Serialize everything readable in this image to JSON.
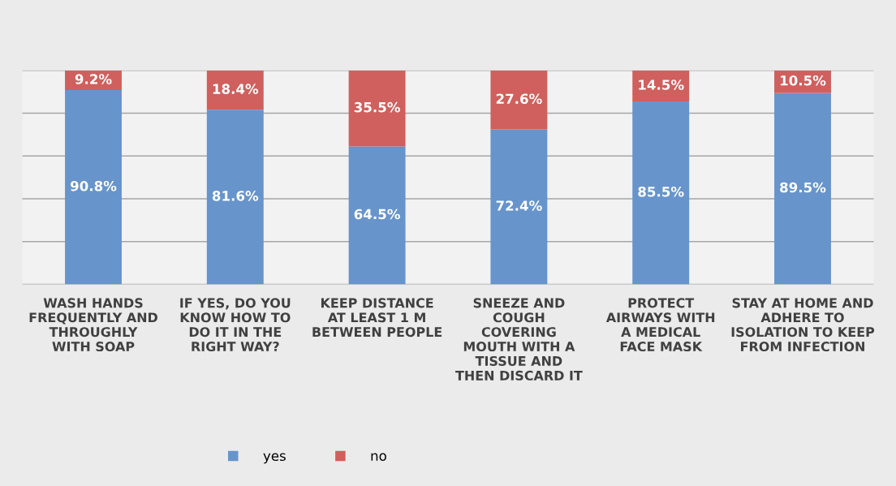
{
  "chart_data": {
    "type": "bar",
    "stacked": true,
    "categories": [
      "WASH HANDS\nFREQUENTLY AND\nTHROUGHLY\nWITH SOAP",
      "IF YES, DO YOU\nKNOW HOW TO\nDO IT IN THE\nRIGHT WAY?",
      "KEEP DISTANCE\nAT LEAST 1 M\nBETWEEN PEOPLE",
      "SNEEZE AND\nCOUGH\nCOVERING\nMOUTH WITH A\nTISSUE AND\nTHEN DISCARD IT",
      "PROTECT\nAIRWAYS WITH\nA MEDICAL\nFACE MASK",
      "STAY AT HOME AND\nADHERE TO\nISOLATION TO KEEP\nFROM INFECTION"
    ],
    "series": [
      {
        "name": "yes",
        "color": "#6794cb",
        "values": [
          90.8,
          81.6,
          64.5,
          72.4,
          85.5,
          89.5
        ],
        "value_labels": [
          "90.8%",
          "81.6%",
          "64.5%",
          "72.4%",
          "85.5%",
          "89.5%"
        ]
      },
      {
        "name": "no",
        "color": "#cf605d",
        "values": [
          9.2,
          18.4,
          35.5,
          27.6,
          14.5,
          10.5
        ],
        "value_labels": [
          "9.2%",
          "18.4%",
          "35.5%",
          "27.6%",
          "14.5%",
          "10.5%"
        ]
      }
    ],
    "ylim": [
      0,
      100
    ],
    "yticks": [
      {
        "value": 0,
        "label": null
      },
      {
        "value": 20,
        "label": null
      },
      {
        "value": 40,
        "label": null
      },
      {
        "value": 60,
        "label": null
      },
      {
        "value": 80,
        "label": null
      },
      {
        "value": 100,
        "label": null
      }
    ],
    "tick_labels": "x",
    "grid": "y",
    "legend": "bottom"
  }
}
